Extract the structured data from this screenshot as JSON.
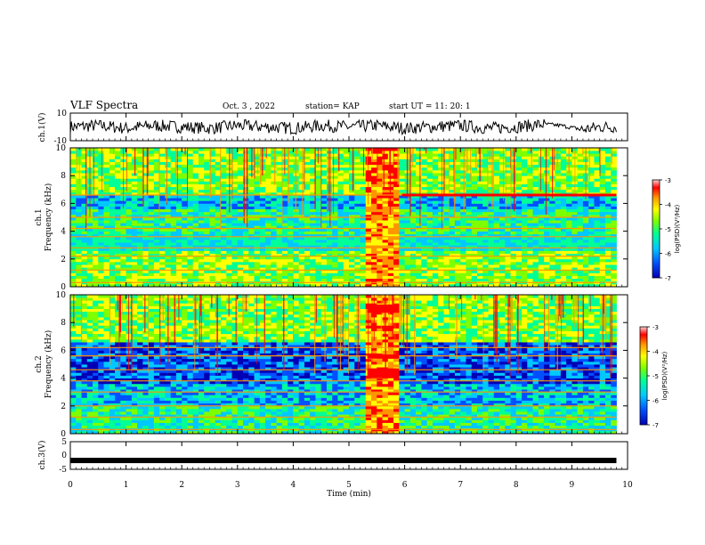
{
  "header": {
    "title": "VLF Spectra",
    "date": "Oct. 3 , 2022",
    "station": "station= KAP",
    "start_ut": "start UT =  11: 20: 1"
  },
  "colors": {
    "scale": [
      "#0000b4",
      "#0050ff",
      "#00c8ff",
      "#00ff96",
      "#7dff00",
      "#ffff00",
      "#ff9600",
      "#ff0000",
      "#ffd2d2"
    ]
  },
  "chart_data": [
    {
      "type": "line",
      "panel": "ch1-waveform",
      "ylabel": "ch.1(V)",
      "ylim": [
        -10,
        10
      ],
      "yticks": [
        "10",
        "-10"
      ],
      "x_extent_min": 9.8,
      "series": [
        {
          "x": [
            0,
            0.5,
            1,
            1.5,
            2,
            2.5,
            3,
            3.5,
            4,
            4.5,
            5,
            5.5,
            6,
            6.5,
            7,
            7.5,
            8,
            8.5,
            8.8,
            9.2,
            9.5,
            9.8
          ],
          "y": [
            0,
            1,
            -1,
            1,
            0,
            -1,
            1,
            0,
            -1,
            1,
            0,
            1,
            -1,
            0,
            1,
            -1,
            0,
            2,
            1,
            -2,
            0,
            0
          ]
        }
      ]
    },
    {
      "type": "heatmap",
      "panel": "ch1-spectrogram",
      "ylabel": "ch.1\nFrequency (kHz)",
      "xlim": [
        0,
        10
      ],
      "ylim": [
        0,
        10
      ],
      "yticks": [
        "0",
        "2",
        "4",
        "6",
        "8",
        "10"
      ],
      "colorbar": {
        "label": "log(PSD)(V²/Hz)",
        "ticks": [
          "-3",
          "-4",
          "-5",
          "-6",
          "-7"
        ],
        "range": [
          -7,
          -3
        ]
      },
      "features": {
        "band_lines_khz": [
          0.3,
          1.2,
          2.2,
          2.8,
          3.6,
          4.2,
          5.0,
          6.6
        ],
        "strong_line_khz": 6.6,
        "burst_window_min": [
          5.3,
          5.95
        ]
      }
    },
    {
      "type": "heatmap",
      "panel": "ch2-spectrogram",
      "ylabel": "ch.2\nFrequency (kHz)",
      "xlim": [
        0,
        10
      ],
      "ylim": [
        0,
        10
      ],
      "yticks": [
        "0",
        "2",
        "4",
        "6",
        "8",
        "10"
      ],
      "colorbar": {
        "label": "log(PSD)(V²/Hz)",
        "ticks": [
          "-3",
          "-4",
          "-5",
          "-6",
          "-7"
        ],
        "range": [
          -7,
          -3
        ]
      },
      "features": {
        "band_lines_khz": [
          0.3,
          1.2,
          2.0,
          3.0,
          3.8,
          4.6,
          5.6,
          6.2
        ],
        "burst_window_min": [
          5.3,
          5.95
        ]
      }
    },
    {
      "type": "line",
      "panel": "ch3-signal",
      "ylabel": "ch.3(V)",
      "ylim": [
        -5,
        5
      ],
      "yticks": [
        "5",
        "0",
        "-5"
      ],
      "series": [
        {
          "x": [
            0,
            9.8
          ],
          "y": [
            -1.8,
            -1.8
          ]
        }
      ]
    }
  ],
  "x_axis": {
    "label": "Time (min)",
    "ticks": [
      "0",
      "1",
      "2",
      "3",
      "4",
      "5",
      "6",
      "7",
      "8",
      "9",
      "10"
    ],
    "range": [
      0,
      10
    ],
    "data_end_min": 9.8
  }
}
